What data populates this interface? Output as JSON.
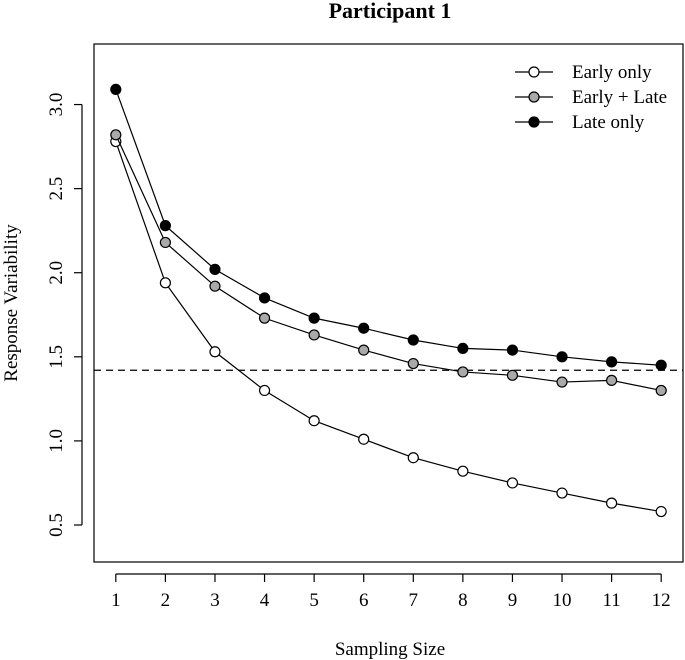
{
  "chart_data": {
    "type": "line",
    "title": "Participant 1",
    "xlabel": "Sampling Size",
    "ylabel": "Response Variability",
    "x": [
      1,
      2,
      3,
      4,
      5,
      6,
      7,
      8,
      9,
      10,
      11,
      12
    ],
    "x_ticks": [
      "1",
      "2",
      "3",
      "4",
      "5",
      "6",
      "7",
      "8",
      "9",
      "10",
      "11",
      "12"
    ],
    "y_ticks": [
      "0.5",
      "1.0",
      "1.5",
      "2.0",
      "2.5",
      "3.0"
    ],
    "xlim": [
      0.56,
      12.44
    ],
    "ylim": [
      0.28,
      3.36
    ],
    "reference_line": {
      "y": 1.42,
      "style": "dashed"
    },
    "series": [
      {
        "name": "Early only",
        "marker": "open-circle",
        "color": "#ffffff",
        "values": [
          2.78,
          1.94,
          1.53,
          1.3,
          1.12,
          1.01,
          0.9,
          0.82,
          0.75,
          0.69,
          0.63,
          0.58
        ]
      },
      {
        "name": "Early + Late",
        "marker": "gray-circle",
        "color": "#a9a9a9",
        "values": [
          2.82,
          2.18,
          1.92,
          1.73,
          1.63,
          1.54,
          1.46,
          1.41,
          1.39,
          1.35,
          1.36,
          1.3
        ]
      },
      {
        "name": "Late only",
        "marker": "black-circle",
        "color": "#000000",
        "values": [
          3.09,
          2.28,
          2.02,
          1.85,
          1.73,
          1.67,
          1.6,
          1.55,
          1.54,
          1.5,
          1.47,
          1.45
        ]
      }
    ],
    "legend": {
      "position": "top-right"
    },
    "grid": false
  }
}
